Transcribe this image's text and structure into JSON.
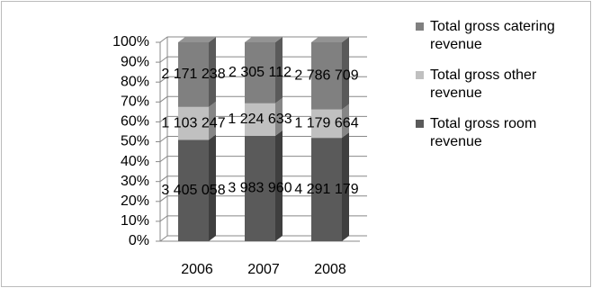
{
  "chart_data": {
    "type": "bar",
    "stacking": "percent",
    "categories": [
      "2006",
      "2007",
      "2008"
    ],
    "series": [
      {
        "name": "Total gross room revenue",
        "color": "#5a5a5a",
        "values": [
          3405058,
          3983960,
          4291179
        ],
        "value_labels": [
          "3 405 058",
          "3 983 960",
          "4 291 179"
        ]
      },
      {
        "name": "Total gross other revenue",
        "color": "#c0c0c0",
        "values": [
          1103247,
          1224633,
          1179664
        ],
        "value_labels": [
          "1 103 247",
          "1 224 633",
          "1 179 664"
        ]
      },
      {
        "name": "Total gross catering revenue",
        "color": "#808080",
        "values": [
          2171238,
          2305112,
          2786709
        ],
        "value_labels": [
          "2 171 238",
          "2 305 112",
          "2 786 709"
        ]
      }
    ],
    "ylim": [
      0,
      100
    ],
    "yticks": [
      {
        "value": 0,
        "label": "0%"
      },
      {
        "value": 10,
        "label": "10%"
      },
      {
        "value": 20,
        "label": "20%"
      },
      {
        "value": 30,
        "label": "30%"
      },
      {
        "value": 40,
        "label": "40%"
      },
      {
        "value": 50,
        "label": "50%"
      },
      {
        "value": 60,
        "label": "60%"
      },
      {
        "value": 70,
        "label": "70%"
      },
      {
        "value": 80,
        "label": "80%"
      },
      {
        "value": 90,
        "label": "90%"
      },
      {
        "value": 100,
        "label": "100%"
      }
    ],
    "grid": true,
    "legend": "right"
  }
}
